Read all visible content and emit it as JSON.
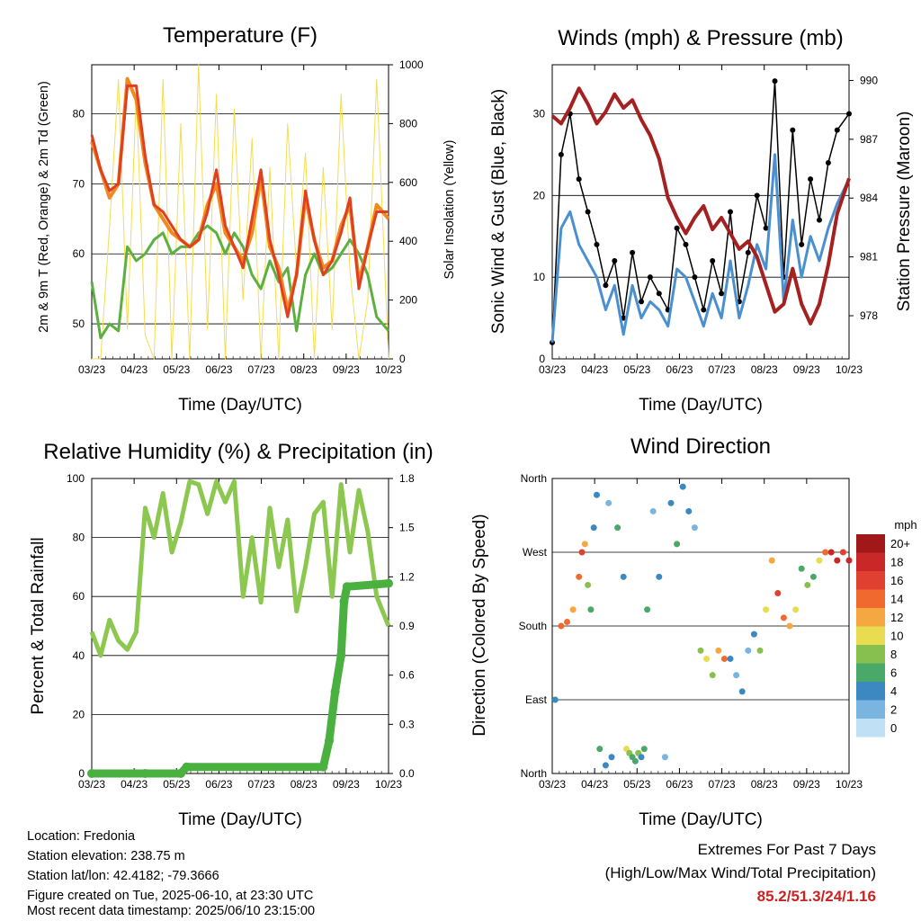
{
  "station": {
    "location": "Location: Fredonia",
    "elevation": "Station elevation: 238.75 m",
    "latlon": "Station lat/lon: 42.4182; -79.3666",
    "created": "Figure created on Tue, 2025-06-10, at 23:30 UTC",
    "recent": "Most recent data timestamp: 2025/06/10 23:15:00"
  },
  "extremes": {
    "line1": "Extremes For Past 7 Days",
    "line2": "(High/Low/Max Wind/Total Precipitation)",
    "values": "85.2/51.3/24/1.16",
    "color": "#cc2222"
  },
  "chart_data": [
    {
      "type": "line",
      "title": "Temperature (F)",
      "xlabel": "Time (Day/UTC)",
      "ylabel": "2m & 9m T (Red, Orange) & 2m Td (Green)",
      "y2label": "Solar Insolation (Yellow)",
      "x_ticks": [
        "03/23",
        "04/23",
        "05/23",
        "06/23",
        "07/23",
        "08/23",
        "09/23",
        "10/23"
      ],
      "ylim": [
        45,
        87
      ],
      "y_ticks": [
        50,
        60,
        70,
        80
      ],
      "y2lim": [
        0,
        1000
      ],
      "y2_ticks": [
        0,
        200,
        400,
        600,
        800,
        1000
      ],
      "grid": "horizontal",
      "series": [
        {
          "color": "#e04020",
          "x": [
            0,
            0.03,
            0.06,
            0.09,
            0.12,
            0.15,
            0.18,
            0.21,
            0.24,
            0.27,
            0.3,
            0.33,
            0.36,
            0.39,
            0.42,
            0.45,
            0.48,
            0.51,
            0.54,
            0.57,
            0.6,
            0.63,
            0.66,
            0.69,
            0.72,
            0.75,
            0.78,
            0.81,
            0.84,
            0.87,
            0.9,
            0.93,
            0.96,
            1.0
          ],
          "values": [
            77,
            72,
            69,
            70,
            84,
            84,
            74,
            67,
            66,
            64,
            62,
            61,
            62,
            66,
            72,
            64,
            61,
            58,
            65,
            72,
            62,
            57,
            51,
            57,
            69,
            62,
            57,
            59,
            63,
            68,
            55,
            61,
            66,
            66
          ]
        },
        {
          "color": "#f08a20",
          "x": [
            0,
            0.03,
            0.06,
            0.09,
            0.12,
            0.15,
            0.18,
            0.21,
            0.24,
            0.27,
            0.3,
            0.33,
            0.36,
            0.39,
            0.42,
            0.45,
            0.48,
            0.51,
            0.54,
            0.57,
            0.6,
            0.63,
            0.66,
            0.69,
            0.72,
            0.75,
            0.78,
            0.81,
            0.84,
            0.87,
            0.9,
            0.93,
            0.96,
            1.0
          ],
          "values": [
            76,
            72,
            68,
            70,
            85,
            82,
            73,
            67,
            65,
            63,
            62,
            61,
            62,
            67,
            70,
            63,
            61,
            59,
            63,
            71,
            61,
            58,
            52,
            57,
            68,
            62,
            58,
            59,
            64,
            67,
            56,
            61,
            67,
            65
          ]
        },
        {
          "color": "#5cb040",
          "x": [
            0,
            0.03,
            0.06,
            0.09,
            0.12,
            0.15,
            0.18,
            0.21,
            0.24,
            0.27,
            0.3,
            0.33,
            0.36,
            0.39,
            0.42,
            0.45,
            0.48,
            0.51,
            0.54,
            0.57,
            0.6,
            0.63,
            0.66,
            0.69,
            0.72,
            0.75,
            0.78,
            0.81,
            0.84,
            0.87,
            0.9,
            0.93,
            0.96,
            1.0
          ],
          "values": [
            56,
            48,
            50,
            49,
            61,
            59,
            60,
            62,
            63,
            60,
            61,
            61,
            63,
            64,
            63,
            60,
            63,
            61,
            57,
            55,
            59,
            56,
            58,
            49,
            57,
            60,
            57,
            58,
            60,
            62,
            60,
            57,
            51,
            49
          ]
        },
        {
          "color": "#f5dc50",
          "x": [
            0,
            0.03,
            0.06,
            0.09,
            0.12,
            0.15,
            0.18,
            0.21,
            0.24,
            0.27,
            0.3,
            0.33,
            0.36,
            0.39,
            0.42,
            0.45,
            0.48,
            0.51,
            0.54,
            0.57,
            0.6,
            0.63,
            0.66,
            0.69,
            0.72,
            0.75,
            0.78,
            0.81,
            0.84,
            0.87,
            0.9,
            0.93,
            0.96,
            1.0
          ],
          "values": [
            0,
            0,
            450,
            950,
            100,
            900,
            80,
            0,
            950,
            0,
            800,
            0,
            1000,
            100,
            900,
            0,
            850,
            200,
            750,
            0,
            650,
            0,
            800,
            300,
            700,
            0,
            650,
            100,
            900,
            300,
            0,
            200,
            950,
            0
          ]
        }
      ]
    },
    {
      "type": "scatter",
      "title": "Winds (mph) & Pressure (mb)",
      "xlabel": "Time (Day/UTC)",
      "ylabel": "Sonic Wind & Gust (Blue, Black)",
      "y2label": "Station Pressure (Maroon)",
      "x_ticks": [
        "03/23",
        "04/23",
        "05/23",
        "06/23",
        "07/23",
        "08/23",
        "09/23",
        "10/23"
      ],
      "ylim": [
        0,
        36
      ],
      "y_ticks": [
        0,
        10,
        20,
        30
      ],
      "y2lim": [
        975.8,
        990.8
      ],
      "y2_ticks": [
        978,
        981,
        984,
        987,
        990
      ],
      "grid": "horizontal",
      "series": [
        {
          "color": "#000000",
          "x": [
            0,
            0.03,
            0.06,
            0.09,
            0.12,
            0.15,
            0.18,
            0.21,
            0.24,
            0.27,
            0.3,
            0.33,
            0.36,
            0.39,
            0.42,
            0.45,
            0.48,
            0.51,
            0.54,
            0.57,
            0.6,
            0.63,
            0.66,
            0.69,
            0.72,
            0.75,
            0.78,
            0.81,
            0.84,
            0.87,
            0.9,
            0.93,
            0.96,
            1.0
          ],
          "values": [
            2,
            25,
            30,
            22,
            18,
            14,
            9,
            12,
            5,
            13,
            7,
            10,
            8,
            6,
            16,
            14,
            10,
            6,
            12,
            8,
            18,
            7,
            13,
            20,
            16,
            34,
            10,
            28,
            14,
            22,
            17,
            24,
            28,
            30
          ]
        },
        {
          "color": "#4a90d0",
          "x": [
            0,
            0.03,
            0.06,
            0.09,
            0.12,
            0.15,
            0.18,
            0.21,
            0.24,
            0.27,
            0.3,
            0.33,
            0.36,
            0.39,
            0.42,
            0.45,
            0.48,
            0.51,
            0.54,
            0.57,
            0.6,
            0.63,
            0.66,
            0.69,
            0.72,
            0.75,
            0.78,
            0.81,
            0.84,
            0.87,
            0.9,
            0.93,
            0.96,
            1.0
          ],
          "values": [
            2,
            16,
            18,
            14,
            12,
            10,
            6,
            9,
            3,
            9,
            5,
            7,
            6,
            4,
            11,
            10,
            7,
            4,
            8,
            5,
            12,
            5,
            9,
            14,
            11,
            25,
            7,
            17,
            10,
            15,
            12,
            16,
            19,
            22
          ]
        },
        {
          "color": "#a52020",
          "x": [
            0,
            0.03,
            0.06,
            0.09,
            0.12,
            0.15,
            0.18,
            0.21,
            0.24,
            0.27,
            0.3,
            0.33,
            0.36,
            0.39,
            0.42,
            0.45,
            0.48,
            0.51,
            0.54,
            0.57,
            0.6,
            0.63,
            0.66,
            0.69,
            0.72,
            0.75,
            0.78,
            0.81,
            0.84,
            0.87,
            0.9,
            0.93,
            0.96,
            1.0
          ],
          "values": [
            988.2,
            987.8,
            988.6,
            989.6,
            988.8,
            987.8,
            988.4,
            989.3,
            988.6,
            989.0,
            988.0,
            987.2,
            986.0,
            984.0,
            983.0,
            982.2,
            983.0,
            983.6,
            982.4,
            983.0,
            982.2,
            981.4,
            981.8,
            981.0,
            979.6,
            978.2,
            978.6,
            980.4,
            978.6,
            977.6,
            978.6,
            980.6,
            983.2,
            985.0
          ]
        }
      ]
    },
    {
      "type": "line",
      "title": "Relative Humidity (%) & Precipitation (in)",
      "xlabel": "Time (Day/UTC)",
      "ylabel": "Percent & Total Rainfall",
      "x_ticks": [
        "03/23",
        "04/23",
        "05/23",
        "06/23",
        "07/23",
        "08/23",
        "09/23",
        "10/23"
      ],
      "ylim": [
        0,
        100
      ],
      "y_ticks": [
        0,
        20,
        40,
        60,
        80,
        100
      ],
      "y2lim": [
        0,
        1.8
      ],
      "y2_ticks": [
        "0.0",
        "0.3",
        "0.6",
        "0.9",
        "1.2",
        "1.5",
        "1.8"
      ],
      "grid": "horizontal",
      "series": [
        {
          "color": "#8cc850",
          "x": [
            0,
            0.03,
            0.06,
            0.09,
            0.12,
            0.15,
            0.18,
            0.21,
            0.24,
            0.27,
            0.3,
            0.33,
            0.36,
            0.39,
            0.42,
            0.45,
            0.48,
            0.51,
            0.54,
            0.57,
            0.6,
            0.63,
            0.66,
            0.69,
            0.72,
            0.75,
            0.78,
            0.81,
            0.84,
            0.87,
            0.9,
            0.93,
            0.96,
            1.0
          ],
          "values": [
            48,
            40,
            52,
            45,
            42,
            48,
            90,
            80,
            95,
            75,
            85,
            99,
            98,
            88,
            99,
            92,
            99,
            60,
            80,
            58,
            90,
            70,
            86,
            55,
            70,
            88,
            92,
            60,
            98,
            75,
            96,
            82,
            60,
            50
          ]
        },
        {
          "color": "#4ab040",
          "x": [
            0,
            0.18,
            0.3,
            0.32,
            0.78,
            0.8,
            0.82,
            0.84,
            0.85,
            0.86,
            1.0
          ],
          "values": [
            0,
            0,
            0,
            0.04,
            0.04,
            0.2,
            0.5,
            0.72,
            1.05,
            1.14,
            1.16
          ]
        }
      ]
    },
    {
      "type": "scatter",
      "title": "Wind Direction",
      "xlabel": "Time (Day/UTC)",
      "ylabel": "Direction (Colored By Speed)",
      "x_ticks": [
        "03/23",
        "04/23",
        "05/23",
        "06/23",
        "07/23",
        "08/23",
        "09/23",
        "10/23"
      ],
      "y_ticks": [
        "North",
        "East",
        "South",
        "West",
        "North"
      ],
      "ylim": [
        0,
        360
      ],
      "grid": "horizontal",
      "legend": {
        "position": "right",
        "title": "mph",
        "labels": [
          "20+",
          "18",
          "16",
          "14",
          "12",
          "10",
          "8",
          "6",
          "4",
          "2",
          "0"
        ],
        "colors": [
          "#a01818",
          "#c82828",
          "#e04030",
          "#f06a30",
          "#f5a840",
          "#e8dc50",
          "#88c050",
          "#4aa868",
          "#3c88c0",
          "#7ab4e0",
          "#c0e0f5"
        ]
      },
      "series": [
        {
          "x": [
            0.01,
            0.03,
            0.05,
            0.07,
            0.09,
            0.1,
            0.11,
            0.12,
            0.13,
            0.14,
            0.15,
            0.16,
            0.18,
            0.19,
            0.2,
            0.22,
            0.24,
            0.25,
            0.26,
            0.27,
            0.28,
            0.29,
            0.3,
            0.31,
            0.32,
            0.34,
            0.36,
            0.38,
            0.4,
            0.42,
            0.44,
            0.46,
            0.48,
            0.5,
            0.52,
            0.54,
            0.56,
            0.58,
            0.6,
            0.62,
            0.64,
            0.66,
            0.68,
            0.7,
            0.72,
            0.74,
            0.76,
            0.78,
            0.8,
            0.82,
            0.84,
            0.86,
            0.88,
            0.9,
            0.92,
            0.94,
            0.96,
            0.98,
            1.0
          ],
          "values": [
            90,
            180,
            185,
            200,
            240,
            270,
            280,
            230,
            200,
            300,
            340,
            30,
            10,
            330,
            20,
            300,
            240,
            30,
            25,
            20,
            15,
            25,
            20,
            30,
            200,
            320,
            240,
            20,
            330,
            280,
            350,
            320,
            300,
            150,
            140,
            120,
            150,
            140,
            140,
            120,
            100,
            150,
            170,
            150,
            200,
            260,
            220,
            190,
            180,
            200,
            250,
            230,
            240,
            260,
            270,
            270,
            260,
            270,
            260
          ],
          "speeds": [
            4,
            14,
            14,
            12,
            14,
            16,
            12,
            8,
            6,
            4,
            4,
            6,
            4,
            2,
            4,
            6,
            4,
            10,
            8,
            6,
            6,
            8,
            4,
            6,
            6,
            2,
            4,
            2,
            4,
            6,
            4,
            4,
            2,
            8,
            10,
            8,
            12,
            14,
            4,
            2,
            4,
            2,
            4,
            8,
            10,
            12,
            16,
            14,
            12,
            10,
            6,
            8,
            6,
            10,
            14,
            18,
            18,
            16,
            18
          ]
        }
      ]
    }
  ]
}
